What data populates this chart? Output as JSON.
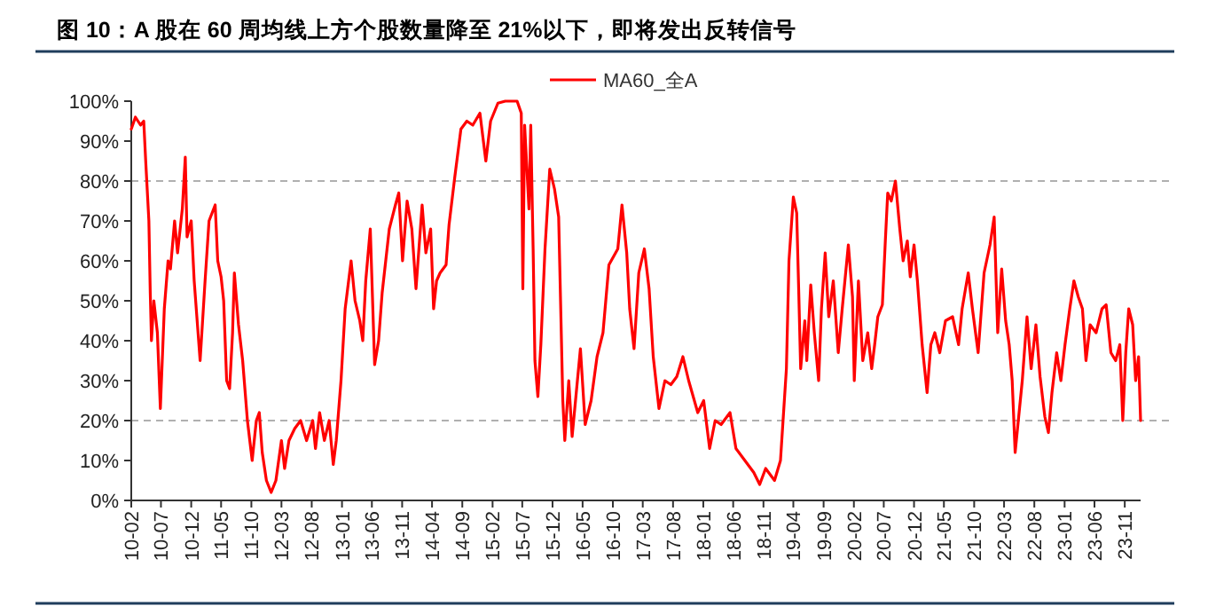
{
  "chart_data": {
    "type": "line",
    "title": "图 10：A 股在 60 周均线上方个股数量降至 21%以下，即将发出反转信号",
    "xlim": [
      "2010-02-01",
      "2024-01-20"
    ],
    "ylim": [
      0,
      100
    ],
    "yticks": [
      {
        "value": 0,
        "label": "0%"
      },
      {
        "value": 10,
        "label": "10%"
      },
      {
        "value": 20,
        "label": "20%"
      },
      {
        "value": 30,
        "label": "30%"
      },
      {
        "value": 40,
        "label": "40%"
      },
      {
        "value": 50,
        "label": "50%"
      },
      {
        "value": 60,
        "label": "60%"
      },
      {
        "value": 70,
        "label": "70%"
      },
      {
        "value": 80,
        "label": "80%"
      },
      {
        "value": 90,
        "label": "90%"
      },
      {
        "value": 100,
        "label": "100%"
      }
    ],
    "xticks": [
      {
        "value": "2010-02",
        "label": "10-02"
      },
      {
        "value": "2010-07",
        "label": "10-07"
      },
      {
        "value": "2010-12",
        "label": "10-12"
      },
      {
        "value": "2011-05",
        "label": "11-05"
      },
      {
        "value": "2011-10",
        "label": "11-10"
      },
      {
        "value": "2012-03",
        "label": "12-03"
      },
      {
        "value": "2012-08",
        "label": "12-08"
      },
      {
        "value": "2013-01",
        "label": "13-01"
      },
      {
        "value": "2013-06",
        "label": "13-06"
      },
      {
        "value": "2013-11",
        "label": "13-11"
      },
      {
        "value": "2014-04",
        "label": "14-04"
      },
      {
        "value": "2014-09",
        "label": "14-09"
      },
      {
        "value": "2015-02",
        "label": "15-02"
      },
      {
        "value": "2015-07",
        "label": "15-07"
      },
      {
        "value": "2015-12",
        "label": "15-12"
      },
      {
        "value": "2016-05",
        "label": "16-05"
      },
      {
        "value": "2016-10",
        "label": "16-10"
      },
      {
        "value": "2017-03",
        "label": "17-03"
      },
      {
        "value": "2017-08",
        "label": "17-08"
      },
      {
        "value": "2018-01",
        "label": "18-01"
      },
      {
        "value": "2018-06",
        "label": "18-06"
      },
      {
        "value": "2018-11",
        "label": "18-11"
      },
      {
        "value": "2019-04",
        "label": "19-04"
      },
      {
        "value": "2019-09",
        "label": "19-09"
      },
      {
        "value": "2020-02",
        "label": "20-02"
      },
      {
        "value": "2020-07",
        "label": "20-07"
      },
      {
        "value": "2020-12",
        "label": "20-12"
      },
      {
        "value": "2021-05",
        "label": "21-05"
      },
      {
        "value": "2021-10",
        "label": "21-10"
      },
      {
        "value": "2022-03",
        "label": "22-03"
      },
      {
        "value": "2022-08",
        "label": "22-08"
      },
      {
        "value": "2023-01",
        "label": "23-01"
      },
      {
        "value": "2023-06",
        "label": "23-06"
      },
      {
        "value": "2023-11",
        "label": "23-11"
      }
    ],
    "ref_lines": [
      {
        "axis": "y",
        "value": 80,
        "color": "#b0b0b0",
        "line_style": "dashed"
      },
      {
        "axis": "y",
        "value": 20,
        "color": "#b0b0b0",
        "line_style": "dashed"
      }
    ],
    "grid": false,
    "legend": "top",
    "marker": "none",
    "line_style": "solid",
    "series": [
      {
        "name": "MA60_全A",
        "color": "#ff0000",
        "x": [
          "2010-02-01",
          "2010-02-22",
          "2010-03-20",
          "2010-04-05",
          "2010-04-15",
          "2010-05-01",
          "2010-05-08",
          "2010-05-14",
          "2010-05-26",
          "2010-06-13",
          "2010-06-28",
          "2010-07-18",
          "2010-08-06",
          "2010-08-18",
          "2010-09-08",
          "2010-09-23",
          "2010-10-17",
          "2010-11-01",
          "2010-11-10",
          "2010-12-01",
          "2010-12-16",
          "2011-01-15",
          "2011-02-09",
          "2011-03-01",
          "2011-04-01",
          "2011-04-14",
          "2011-05-01",
          "2011-05-14",
          "2011-05-29",
          "2011-06-13",
          "2011-06-28",
          "2011-07-07",
          "2011-07-28",
          "2011-08-18",
          "2011-09-11",
          "2011-10-05",
          "2011-10-26",
          "2011-11-10",
          "2011-11-25",
          "2011-12-16",
          "2012-01-09",
          "2012-02-02",
          "2012-03-01",
          "2012-03-17",
          "2012-04-08",
          "2012-05-07",
          "2012-06-06",
          "2012-07-06",
          "2012-08-06",
          "2012-08-20",
          "2012-09-10",
          "2012-10-04",
          "2012-10-28",
          "2012-11-18",
          "2012-12-03",
          "2012-12-27",
          "2013-01-17",
          "2013-02-16",
          "2013-03-08",
          "2013-04-01",
          "2013-04-16",
          "2013-05-01",
          "2013-05-24",
          "2013-06-15",
          "2013-07-05",
          "2013-07-23",
          "2013-08-28",
          "2013-09-28",
          "2013-10-15",
          "2013-11-03",
          "2013-11-26",
          "2013-12-20",
          "2014-01-10",
          "2014-02-10",
          "2014-03-01",
          "2014-03-25",
          "2014-04-09",
          "2014-04-24",
          "2014-05-12",
          "2014-06-11",
          "2014-06-26",
          "2014-07-25",
          "2014-08-25",
          "2014-09-24",
          "2014-10-24",
          "2014-11-29",
          "2014-12-29",
          "2015-01-22",
          "2015-02-28",
          "2015-04-06",
          "2015-06-05",
          "2015-06-26",
          "2015-07-04",
          "2015-07-13",
          "2015-08-04",
          "2015-08-13",
          "2015-08-25",
          "2015-09-03",
          "2015-09-18",
          "2015-10-03",
          "2015-10-24",
          "2015-11-17",
          "2015-12-11",
          "2016-01-01",
          "2016-01-22",
          "2016-02-01",
          "2016-02-21",
          "2016-03-09",
          "2016-03-30",
          "2016-04-20",
          "2016-05-14",
          "2016-06-13",
          "2016-07-13",
          "2016-08-12",
          "2016-09-11",
          "2016-10-26",
          "2016-11-16",
          "2016-12-10",
          "2016-12-25",
          "2017-01-16",
          "2017-02-09",
          "2017-03-09",
          "2017-04-02",
          "2017-04-23",
          "2017-05-22",
          "2017-06-21",
          "2017-07-21",
          "2017-08-20",
          "2017-09-20",
          "2017-10-19",
          "2017-12-04",
          "2018-01-03",
          "2018-02-02",
          "2018-03-02",
          "2018-04-01",
          "2018-05-16",
          "2018-06-15",
          "2018-07-30",
          "2018-09-13",
          "2018-10-13",
          "2018-11-12",
          "2018-12-27",
          "2019-01-26",
          "2019-02-25",
          "2019-03-10",
          "2019-04-01",
          "2019-04-18",
          "2019-04-29",
          "2019-05-08",
          "2019-05-29",
          "2019-06-08",
          "2019-06-28",
          "2019-07-16",
          "2019-08-07",
          "2019-08-21",
          "2019-09-09",
          "2019-09-27",
          "2019-10-20",
          "2019-11-14",
          "2019-12-04",
          "2020-01-04",
          "2020-01-25",
          "2020-02-03",
          "2020-02-24",
          "2020-03-17",
          "2020-04-11",
          "2020-05-01",
          "2020-05-16",
          "2020-06-01",
          "2020-06-24",
          "2020-07-09",
          "2020-07-21",
          "2020-08-08",
          "2020-08-29",
          "2020-09-20",
          "2020-10-07",
          "2020-10-28",
          "2020-11-12",
          "2020-12-01",
          "2020-12-18",
          "2021-01-11",
          "2021-02-05",
          "2021-02-24",
          "2021-03-16",
          "2021-04-10",
          "2021-05-09",
          "2021-06-14",
          "2021-07-14",
          "2021-08-01",
          "2021-09-01",
          "2021-09-22",
          "2021-10-21",
          "2021-11-20",
          "2021-12-20",
          "2022-01-10",
          "2022-01-28",
          "2022-02-17",
          "2022-03-09",
          "2022-03-27",
          "2022-04-11",
          "2022-04-26",
          "2022-05-08",
          "2022-06-01",
          "2022-06-25",
          "2022-07-16",
          "2022-08-09",
          "2022-08-30",
          "2022-09-23",
          "2022-10-11",
          "2022-10-29",
          "2022-11-22",
          "2022-12-13",
          "2023-01-03",
          "2023-01-27",
          "2023-02-17",
          "2023-03-11",
          "2023-04-01",
          "2023-04-19",
          "2023-05-10",
          "2023-06-09",
          "2023-07-09",
          "2023-07-30",
          "2023-08-23",
          "2023-09-16",
          "2023-10-07",
          "2023-10-22",
          "2023-11-06",
          "2023-11-21",
          "2023-12-11",
          "2023-12-26",
          "2024-01-10",
          "2024-01-20"
        ],
        "values": [
          93,
          96,
          94,
          95,
          85,
          70,
          52,
          40,
          50,
          42,
          23,
          48,
          60,
          58,
          70,
          62,
          73,
          86,
          66,
          70,
          55,
          35,
          55,
          70,
          74,
          60,
          56,
          50,
          30,
          28,
          42,
          57,
          44,
          35,
          20,
          10,
          20,
          22,
          12,
          5,
          2,
          5,
          15,
          8,
          15,
          18,
          20,
          15,
          20,
          13,
          22,
          15,
          20,
          9,
          15,
          30,
          48,
          60,
          50,
          45,
          40,
          55,
          68,
          34,
          40,
          52,
          68,
          74,
          77,
          60,
          75,
          68,
          53,
          74,
          62,
          68,
          48,
          55,
          57,
          59,
          69,
          81,
          93,
          95,
          94,
          97,
          85,
          95,
          99.5,
          100,
          100,
          97,
          53,
          94,
          73,
          94,
          63,
          35,
          26,
          39,
          63,
          83,
          78,
          71,
          25,
          15,
          30,
          16,
          27,
          38,
          19,
          25,
          36,
          42,
          59,
          63,
          74,
          62,
          48,
          38,
          57,
          63,
          53,
          36,
          23,
          30,
          29,
          31,
          36,
          30,
          22,
          25,
          13,
          20,
          19,
          22,
          13,
          10,
          7,
          4,
          8,
          5,
          10,
          33,
          60,
          76,
          72,
          51,
          33,
          45,
          35,
          54,
          42,
          30,
          48,
          62,
          46,
          55,
          37,
          48,
          64,
          51,
          30,
          55,
          35,
          42,
          33,
          39,
          46,
          49,
          65,
          77,
          75,
          80,
          68,
          60,
          65,
          56,
          64,
          55,
          39,
          27,
          39,
          42,
          37,
          45,
          46,
          39,
          48,
          57,
          48,
          37,
          57,
          64,
          71,
          42,
          58,
          45,
          39,
          30,
          12,
          18,
          30,
          46,
          33,
          44,
          31,
          21,
          17,
          27,
          37,
          30,
          39,
          48,
          55,
          51,
          48,
          35,
          44,
          42,
          48,
          49,
          37,
          35,
          39,
          20,
          37,
          48,
          44,
          30,
          36,
          20
        ]
      }
    ]
  }
}
